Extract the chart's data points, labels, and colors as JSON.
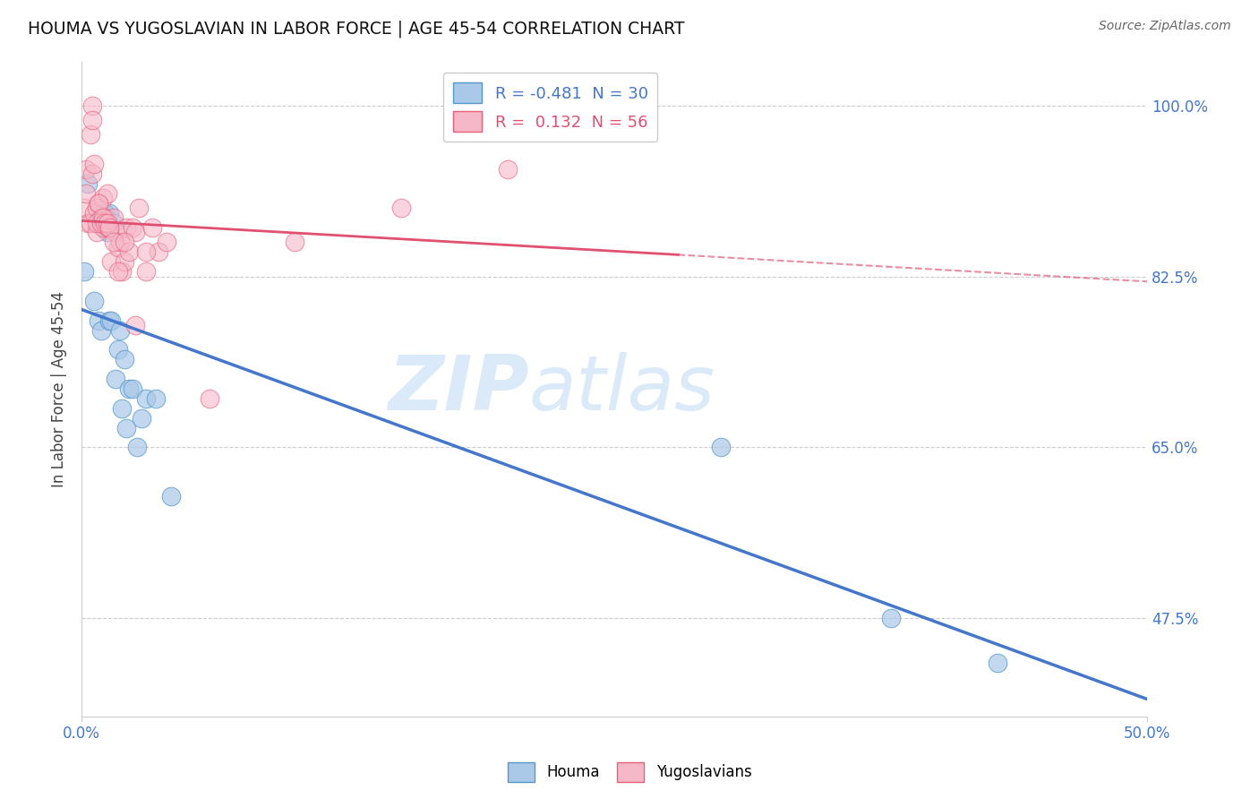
{
  "title": "HOUMA VS YUGOSLAVIAN IN LABOR FORCE | AGE 45-54 CORRELATION CHART",
  "source": "Source: ZipAtlas.com",
  "ylabel": "In Labor Force | Age 45-54",
  "x_min": 0.0,
  "x_max": 0.5,
  "y_min": 0.375,
  "y_max": 1.045,
  "y_ticks": [
    0.475,
    0.65,
    0.825,
    1.0
  ],
  "y_tick_labels": [
    "47.5%",
    "65.0%",
    "82.5%",
    "100.0%"
  ],
  "r_houma": -0.481,
  "n_houma": 30,
  "r_yugo": 0.132,
  "n_yugo": 56,
  "houma_fill_color": "#aac8e8",
  "houma_edge_color": "#5599cc",
  "yugo_fill_color": "#f5b8c8",
  "yugo_edge_color": "#e8607a",
  "houma_line_color": "#4477cc",
  "yugo_line_color": "#e05070",
  "watermark_color": "#daeaf8",
  "houma_x": [
    0.001,
    0.003,
    0.006,
    0.008,
    0.009,
    0.01,
    0.011,
    0.011,
    0.012,
    0.012,
    0.013,
    0.013,
    0.014,
    0.015,
    0.016,
    0.017,
    0.018,
    0.019,
    0.02,
    0.021,
    0.022,
    0.024,
    0.026,
    0.028,
    0.03,
    0.035,
    0.042,
    0.3,
    0.38,
    0.43
  ],
  "houma_y": [
    0.83,
    0.92,
    0.8,
    0.78,
    0.77,
    0.88,
    0.89,
    0.89,
    0.87,
    0.88,
    0.78,
    0.89,
    0.78,
    0.88,
    0.72,
    0.75,
    0.77,
    0.69,
    0.74,
    0.67,
    0.71,
    0.71,
    0.65,
    0.68,
    0.7,
    0.7,
    0.6,
    0.65,
    0.475,
    0.43
  ],
  "yugo_x": [
    0.001,
    0.002,
    0.002,
    0.003,
    0.004,
    0.004,
    0.005,
    0.005,
    0.005,
    0.006,
    0.006,
    0.007,
    0.007,
    0.008,
    0.009,
    0.009,
    0.01,
    0.01,
    0.01,
    0.011,
    0.011,
    0.012,
    0.012,
    0.013,
    0.014,
    0.015,
    0.016,
    0.017,
    0.018,
    0.019,
    0.02,
    0.021,
    0.022,
    0.024,
    0.025,
    0.027,
    0.03,
    0.033,
    0.036,
    0.04,
    0.007,
    0.008,
    0.009,
    0.01,
    0.011,
    0.012,
    0.013,
    0.015,
    0.017,
    0.02,
    0.025,
    0.03,
    0.06,
    0.1,
    0.15,
    0.2
  ],
  "yugo_y": [
    0.895,
    0.935,
    0.91,
    0.88,
    0.88,
    0.97,
    1.0,
    0.985,
    0.93,
    0.94,
    0.89,
    0.895,
    0.87,
    0.9,
    0.885,
    0.88,
    0.905,
    0.88,
    0.875,
    0.885,
    0.88,
    0.91,
    0.875,
    0.875,
    0.84,
    0.885,
    0.87,
    0.855,
    0.86,
    0.83,
    0.84,
    0.875,
    0.85,
    0.875,
    0.87,
    0.895,
    0.83,
    0.875,
    0.85,
    0.86,
    0.88,
    0.9,
    0.88,
    0.885,
    0.88,
    0.88,
    0.875,
    0.86,
    0.83,
    0.86,
    0.775,
    0.85,
    0.7,
    0.86,
    0.895,
    0.935
  ]
}
